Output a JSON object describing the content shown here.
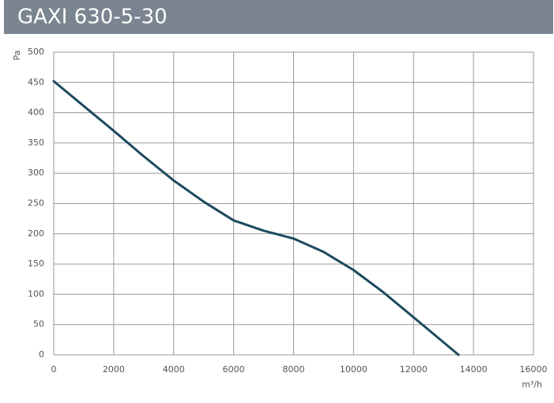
{
  "chart_data": {
    "type": "line",
    "title": "GAXI 630-5-30",
    "x_label": "m³/h",
    "y_label": "Pa",
    "x": [
      0,
      1000,
      2000,
      3000,
      4000,
      5000,
      6000,
      7000,
      8000,
      9000,
      10000,
      11000,
      12000,
      13500
    ],
    "series": [
      {
        "name": "GAXI 630-5-30",
        "color": "#1c4a5e",
        "values": [
          452,
          411,
          370,
          328,
          288,
          253,
          222,
          205,
          192,
          170,
          140,
          103,
          62,
          0
        ]
      }
    ],
    "xlim": [
      0,
      16000
    ],
    "xticks": [
      0,
      2000,
      4000,
      6000,
      8000,
      10000,
      12000,
      14000,
      16000
    ],
    "ylim": [
      0,
      500
    ],
    "yticks": [
      0,
      50,
      100,
      150,
      200,
      250,
      300,
      350,
      400,
      450,
      500
    ],
    "grid": true
  }
}
